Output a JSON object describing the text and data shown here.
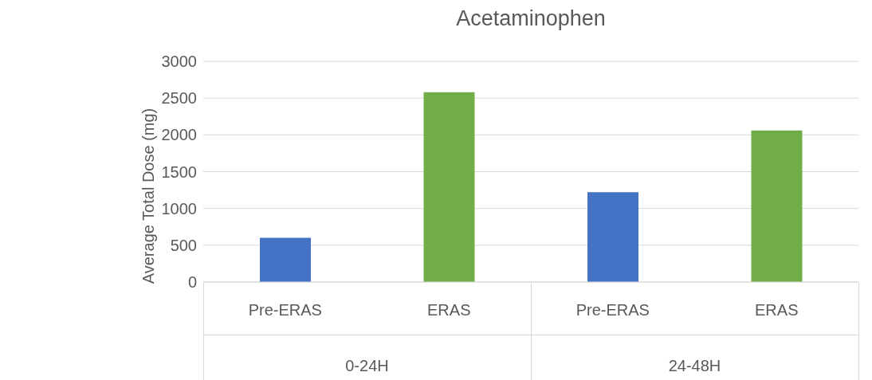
{
  "chart_data": {
    "type": "bar",
    "title": "Acetaminophen",
    "ylabel": "Average Total Dose (mg)",
    "categories": [
      "Pre-ERAS",
      "ERAS",
      "Pre-ERAS",
      "ERAS"
    ],
    "values": [
      600,
      2580,
      1220,
      2060
    ],
    "colors": [
      "#4472c4",
      "#70ad47",
      "#4472c4",
      "#70ad47"
    ],
    "ylim": [
      0,
      3000
    ],
    "yticks": [
      0,
      500,
      1000,
      1500,
      2000,
      2500,
      3000
    ],
    "grid": "y",
    "legend": false,
    "annotations": [
      "0-24H",
      "24-48H"
    ]
  }
}
